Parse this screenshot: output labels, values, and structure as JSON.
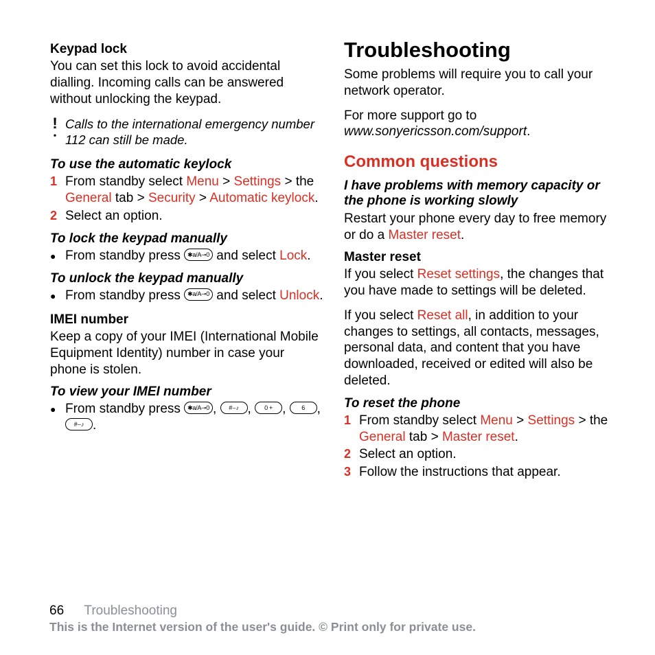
{
  "left": {
    "keypadLock": {
      "title": "Keypad lock",
      "body": "You can set this lock to avoid accidental dialling. Incoming calls can be answered without unlocking the keypad."
    },
    "note": {
      "text": "Calls to the international emergency number 112 can still be made."
    },
    "autoKeylock": {
      "title": "To use the automatic keylock",
      "step1_prefix": "From standby select ",
      "menu": "Menu",
      "gt1": " > ",
      "settings": "Settings",
      "gt2": " > the ",
      "general": "General",
      "tab_gt": " tab > ",
      "security": "Security",
      "gt3": " > ",
      "autokey": "Automatic keylock",
      "period": ".",
      "step2": "Select an option."
    },
    "lockManually": {
      "title": "To lock the keypad manually",
      "prefix": "From standby press ",
      "btn": "✱a/A⊸0",
      "mid": " and select ",
      "lock": "Lock",
      "period": "."
    },
    "unlockManually": {
      "title": "To unlock the keypad manually",
      "prefix": "From standby press ",
      "btn": "✱a/A⊸0",
      "mid": " and select ",
      "unlock": "Unlock",
      "period": "."
    },
    "imei": {
      "title": "IMEI number",
      "body": "Keep a copy of your IMEI (International Mobile Equipment Identity) number in case your phone is stolen."
    },
    "viewImei": {
      "title": "To view your IMEI number",
      "prefix": "From standby press ",
      "b1": "✱a/A⊸0",
      "b2": "#⌣♪",
      "b3": "0 +",
      "b4": "6",
      "b5": "#⌣♪",
      "comma": ", ",
      "period": "."
    }
  },
  "right": {
    "title": "Troubleshooting",
    "intro1": "Some problems will require you to call your network operator.",
    "intro2a": "For more support go to ",
    "intro2b": "www.sonyericsson.com/support",
    "intro2c": ".",
    "commonQ": "Common questions",
    "q1": {
      "title": "I have problems with memory capacity or the phone is working slowly",
      "prefix": "Restart your phone every day to free memory or do a ",
      "masterReset": "Master reset",
      "period": "."
    },
    "masterReset": {
      "title": "Master reset",
      "p1_prefix": "If you select ",
      "resetSettings": "Reset settings",
      "p1_suffix": ", the changes that you have made to settings will be deleted.",
      "p2_prefix": "If you select ",
      "resetAll": "Reset all",
      "p2_suffix": ", in addition to your changes to settings, all contacts, messages, personal data, and content that you have downloaded, received or edited will also be deleted."
    },
    "resetPhone": {
      "title": "To reset the phone",
      "s1_prefix": "From standby select ",
      "menu": "Menu",
      "gt1": " > ",
      "settings": "Settings",
      "gt2": " > the ",
      "general": "General",
      "tab_gt": " tab > ",
      "masterReset": "Master reset",
      "period": ".",
      "s2": "Select an option.",
      "s3": "Follow the instructions that appear."
    }
  },
  "footer": {
    "pageNum": "66",
    "section": "Troubleshooting",
    "notice": "This is the Internet version of the user's guide. © Print only for private use."
  },
  "colors": {
    "red": "#d93025",
    "grey": "#8a8f96"
  }
}
